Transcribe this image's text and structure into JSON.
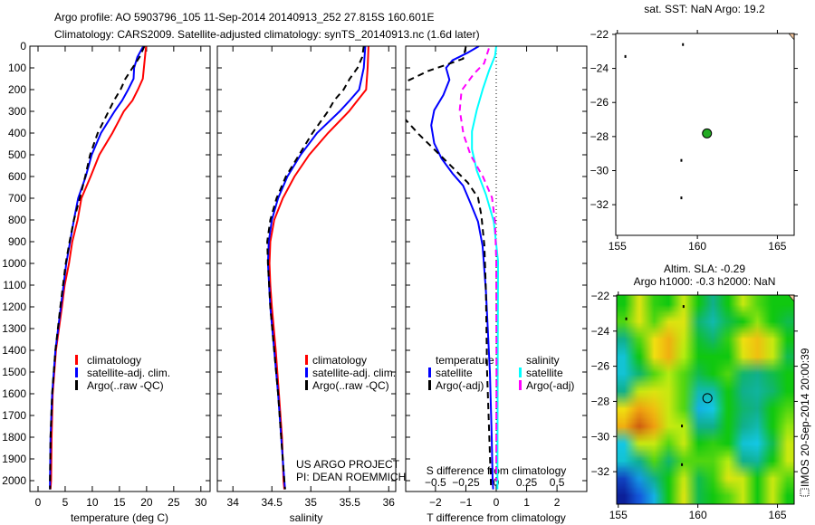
{
  "header": {
    "title_line1": "Argo profile: AO 5903796_105 11-Sep-2014 20140913_252 27.815S 160.601E",
    "title_line2": "Climatology: CARS2009. Satellite-adjusted climatology: synTS_20140913.nc (1.6d later)"
  },
  "credits": {
    "line1": "US ARGO PROJECT",
    "line2": "PI: DEAN ROEMMICH"
  },
  "watermark": "IMOS 20-Sep-2014 20:00:39",
  "legend_profiles": {
    "climatology": "climatology",
    "satellite": "satellite-adj. clim.",
    "argo": "Argo(..raw -QC)"
  },
  "legend_diff": {
    "temperature": "temperature",
    "salinity": "salinity",
    "satellite": "satellite",
    "argo": "Argo(-adj)"
  },
  "colors": {
    "climatology": "#ff0000",
    "satellite": "#0000ff",
    "argo": "#000000",
    "s_satellite": "#00ffff",
    "s_argo": "#ff00ff",
    "argo_marker": "#22aa22"
  },
  "chart_data": [
    {
      "type": "line",
      "id": "temperature",
      "xlabel": "temperature (deg C)",
      "xlim": [
        -1.5,
        31.7
      ],
      "ylim": [
        2050,
        0
      ],
      "xticks": [
        0,
        5,
        10,
        15,
        20,
        25,
        30
      ],
      "yticks": [
        0,
        100,
        200,
        300,
        400,
        500,
        600,
        700,
        800,
        900,
        1000,
        1100,
        1200,
        1300,
        1400,
        1500,
        1600,
        1700,
        1800,
        1900,
        2000
      ],
      "series": [
        {
          "name": "climatology",
          "color": "#ff0000",
          "dash": false,
          "depth": [
            0,
            50,
            100,
            150,
            200,
            250,
            300,
            400,
            500,
            600,
            700,
            800,
            900,
            1000,
            1100,
            1200,
            1400,
            1600,
            1800,
            2000,
            2040
          ],
          "values": [
            19.9,
            19.7,
            19.5,
            19.3,
            18.4,
            17.4,
            15.8,
            13.7,
            11.3,
            9.7,
            8.0,
            7.3,
            6.3,
            5.7,
            4.9,
            4.4,
            3.3,
            2.7,
            2.5,
            2.4,
            2.3
          ]
        },
        {
          "name": "satellite-adj. clim.",
          "color": "#0000ff",
          "dash": false,
          "depth": [
            0,
            50,
            100,
            150,
            200,
            250,
            300,
            400,
            500,
            600,
            700,
            800,
            900,
            1000,
            1100,
            1200,
            1400,
            1600,
            1800,
            2000,
            2040
          ],
          "values": [
            19.4,
            18.3,
            17.7,
            17.6,
            16.6,
            15.5,
            14.1,
            11.6,
            9.9,
            8.8,
            7.4,
            6.6,
            5.9,
            5.2,
            4.7,
            4.2,
            3.2,
            2.6,
            2.3,
            2.2,
            2.2
          ]
        },
        {
          "name": "Argo(..raw -QC)",
          "color": "#000000",
          "dash": true,
          "depth": [
            0,
            50,
            100,
            150,
            200,
            250,
            300,
            400,
            500,
            600,
            700,
            800,
            900,
            1000,
            1200,
            1400,
            1600,
            1800,
            2000,
            2040
          ],
          "values": [
            19.6,
            18.7,
            17.4,
            16.1,
            15.2,
            14.0,
            13.0,
            11.0,
            9.6,
            8.7,
            7.7,
            6.6,
            5.8,
            5.1,
            4.1,
            3.2,
            2.6,
            2.3,
            2.2,
            2.2
          ]
        }
      ]
    },
    {
      "type": "line",
      "id": "salinity",
      "xlabel": "salinity",
      "xlim": [
        33.8,
        36.09
      ],
      "ylim": [
        2050,
        0
      ],
      "xticks": [
        34,
        34.5,
        35,
        35.5,
        36
      ],
      "series": [
        {
          "name": "climatology",
          "color": "#ff0000",
          "dash": false,
          "depth": [
            0,
            100,
            200,
            250,
            300,
            400,
            500,
            600,
            700,
            800,
            900,
            1000,
            1100,
            1200,
            1400,
            1600,
            1800,
            2000,
            2040
          ],
          "values": [
            35.74,
            35.73,
            35.71,
            35.6,
            35.49,
            35.22,
            34.98,
            34.79,
            34.64,
            34.53,
            34.48,
            34.47,
            34.48,
            34.5,
            34.55,
            34.59,
            34.63,
            34.65,
            34.66
          ]
        },
        {
          "name": "satellite-adj. clim.",
          "color": "#0000ff",
          "dash": false,
          "depth": [
            0,
            100,
            200,
            250,
            300,
            400,
            500,
            600,
            700,
            800,
            900,
            1000,
            1200,
            1400,
            1600,
            1800,
            2000,
            2040
          ],
          "values": [
            35.7,
            35.68,
            35.62,
            35.5,
            35.37,
            35.08,
            34.87,
            34.7,
            34.58,
            34.5,
            34.46,
            34.45,
            34.48,
            34.53,
            34.58,
            34.62,
            34.66,
            34.67
          ]
        },
        {
          "name": "Argo(..raw -QC)",
          "color": "#000000",
          "dash": true,
          "depth": [
            0,
            50,
            100,
            150,
            200,
            250,
            300,
            400,
            500,
            600,
            700,
            800,
            900,
            1000,
            1200,
            1400,
            1600,
            1800,
            2000,
            2040
          ],
          "values": [
            35.68,
            35.66,
            35.6,
            35.5,
            35.42,
            35.3,
            35.22,
            35.02,
            34.85,
            34.68,
            34.56,
            34.48,
            34.44,
            34.45,
            34.48,
            34.53,
            34.58,
            34.62,
            34.66,
            34.67
          ]
        }
      ]
    },
    {
      "type": "line",
      "id": "difference",
      "xlabel": "T difference from climatology",
      "xlabel2": "S difference from climatology",
      "xlim": [
        -2.98,
        2.98
      ],
      "xlim2": [
        -0.745,
        0.745
      ],
      "ylim": [
        2050,
        0
      ],
      "xticks": [
        -2,
        -1,
        0,
        1,
        2
      ],
      "xticks2": [
        -0.5,
        -0.25,
        0,
        0.25,
        0.5
      ],
      "series": [
        {
          "name": "temperature satellite",
          "axis": "T",
          "color": "#0000ff",
          "dash": false,
          "depth": [
            0,
            30,
            65,
            100,
            155,
            225,
            295,
            364,
            447,
            517,
            586,
            642,
            725,
            808,
            919,
            1128,
            1500,
            1800,
            2000,
            2040
          ],
          "values": [
            -0.57,
            -0.94,
            -1.44,
            -1.65,
            -1.54,
            -1.74,
            -2.04,
            -2.14,
            -2.04,
            -1.8,
            -1.44,
            -1.09,
            -0.84,
            -0.6,
            -0.45,
            -0.34,
            -0.21,
            -0.15,
            -0.12,
            -0.1
          ]
        },
        {
          "name": "temperature Argo(-adj)",
          "axis": "T",
          "color": "#000000",
          "dash": true,
          "depth": [
            3,
            58,
            86,
            114,
            155,
            200,
            260,
            336,
            405,
            475,
            558,
            628,
            697,
            780,
            919,
            1128,
            1500,
            2000,
            2040
          ],
          "values": [
            -1.0,
            -1.09,
            -1.65,
            -2.24,
            -2.85,
            -3.6,
            -3.6,
            -3.0,
            -2.55,
            -2.04,
            -1.44,
            -0.94,
            -0.6,
            -0.49,
            -0.39,
            -0.34,
            -0.3,
            -0.18,
            -0.17
          ]
        },
        {
          "name": "salinity satellite",
          "axis": "S",
          "color": "#00ffff",
          "dash": false,
          "depth": [
            0,
            44,
            114,
            197,
            294,
            392,
            475,
            572,
            683,
            808,
            989,
            1500,
            2040
          ],
          "values": [
            0.0,
            -0.01,
            -0.06,
            -0.11,
            -0.16,
            -0.2,
            -0.2,
            -0.16,
            -0.085,
            -0.02,
            0.015,
            0.012,
            0.01
          ]
        },
        {
          "name": "salinity Argo(-adj)",
          "axis": "S",
          "color": "#ff00ff",
          "dash": true,
          "depth": [
            10,
            79,
            128,
            204,
            294,
            405,
            503,
            600,
            697,
            808,
            989,
            1500,
            2000
          ],
          "values": [
            -0.06,
            -0.1,
            -0.185,
            -0.285,
            -0.3,
            -0.27,
            -0.21,
            -0.11,
            -0.035,
            -0.01,
            0.0,
            0.002,
            0.0
          ]
        }
      ]
    },
    {
      "type": "scatter",
      "id": "sst-map",
      "title": "sat. SST: NaN Argo: 19.2",
      "xlim": [
        154.9,
        166.05
      ],
      "ylim": [
        -33.8,
        -21.95
      ],
      "xticks": [
        155,
        160,
        165
      ],
      "yticks": [
        -22,
        -24,
        -26,
        -28,
        -30,
        -32
      ],
      "argo_position": [
        160.601,
        -27.815
      ],
      "coast_points": [
        [
          155.5,
          -23.3
        ],
        [
          159.1,
          -22.6
        ],
        [
          159.0,
          -29.4
        ],
        [
          159.0,
          -31.6
        ]
      ]
    },
    {
      "type": "heatmap",
      "id": "sla-map",
      "title_line1": "Altim. SLA: -0.29",
      "title_line2": "Argo h1000: -0.3 h2000: NaN",
      "xlim": [
        154.9,
        166.05
      ],
      "ylim": [
        -33.85,
        -21.95
      ],
      "xticks": [
        155,
        160,
        165
      ],
      "yticks": [
        -22,
        -24,
        -26,
        -28,
        -30,
        -32
      ],
      "argo_position": [
        160.601,
        -27.815
      ],
      "lon": [
        155,
        156,
        157,
        158,
        159,
        160,
        161,
        162,
        163,
        164,
        165,
        166
      ],
      "lat": [
        -22,
        -23,
        -24,
        -25,
        -26,
        -27,
        -28,
        -29,
        -30,
        -31,
        -32,
        -33
      ],
      "values": [
        [
          0.0,
          0.35,
          0.05,
          0.0,
          0.3,
          0.0,
          -0.2,
          0.0,
          0.3,
          0.1,
          0.0,
          0.0
        ],
        [
          0.1,
          0.35,
          0.1,
          0.35,
          0.35,
          -0.15,
          -0.3,
          -0.1,
          0.0,
          0.2,
          0.0,
          -0.1
        ],
        [
          -0.2,
          0.1,
          0.4,
          0.55,
          0.3,
          -0.05,
          -0.15,
          0.05,
          0.4,
          0.5,
          0.3,
          0.0
        ],
        [
          -0.4,
          0.0,
          0.4,
          0.55,
          0.25,
          0.0,
          0.0,
          0.0,
          0.35,
          0.5,
          0.3,
          -0.1
        ],
        [
          -0.4,
          -0.15,
          0.1,
          0.25,
          0.1,
          -0.1,
          0.0,
          0.1,
          -0.15,
          -0.2,
          -0.1,
          0.0
        ],
        [
          -0.2,
          0.3,
          0.35,
          0.3,
          0.1,
          -0.3,
          -0.3,
          0.0,
          -0.2,
          -0.25,
          -0.15,
          0.0
        ],
        [
          0.4,
          0.6,
          0.5,
          0.3,
          0.1,
          -0.5,
          -0.45,
          0.0,
          -0.15,
          -0.2,
          0.0,
          0.1
        ],
        [
          0.55,
          0.8,
          0.6,
          0.3,
          0.25,
          -0.2,
          -0.2,
          0.0,
          -0.2,
          -0.3,
          0.0,
          0.2
        ],
        [
          -0.45,
          0.3,
          0.3,
          0.1,
          0.3,
          0.0,
          0.05,
          0.0,
          -0.4,
          -0.45,
          -0.1,
          0.3
        ],
        [
          -0.4,
          -0.2,
          0.1,
          -0.15,
          0.1,
          0.1,
          0.1,
          0.25,
          -0.2,
          -0.25,
          0.0,
          0.3
        ],
        [
          -0.8,
          -0.55,
          -0.2,
          0.0,
          0.3,
          -0.1,
          0.05,
          0.35,
          0.3,
          0.0,
          0.3,
          0.1
        ],
        [
          -0.95,
          -0.7,
          -0.5,
          0.0,
          0.35,
          -0.1,
          0.0,
          0.1,
          0.3,
          0.0,
          0.3,
          0.0
        ]
      ]
    }
  ]
}
